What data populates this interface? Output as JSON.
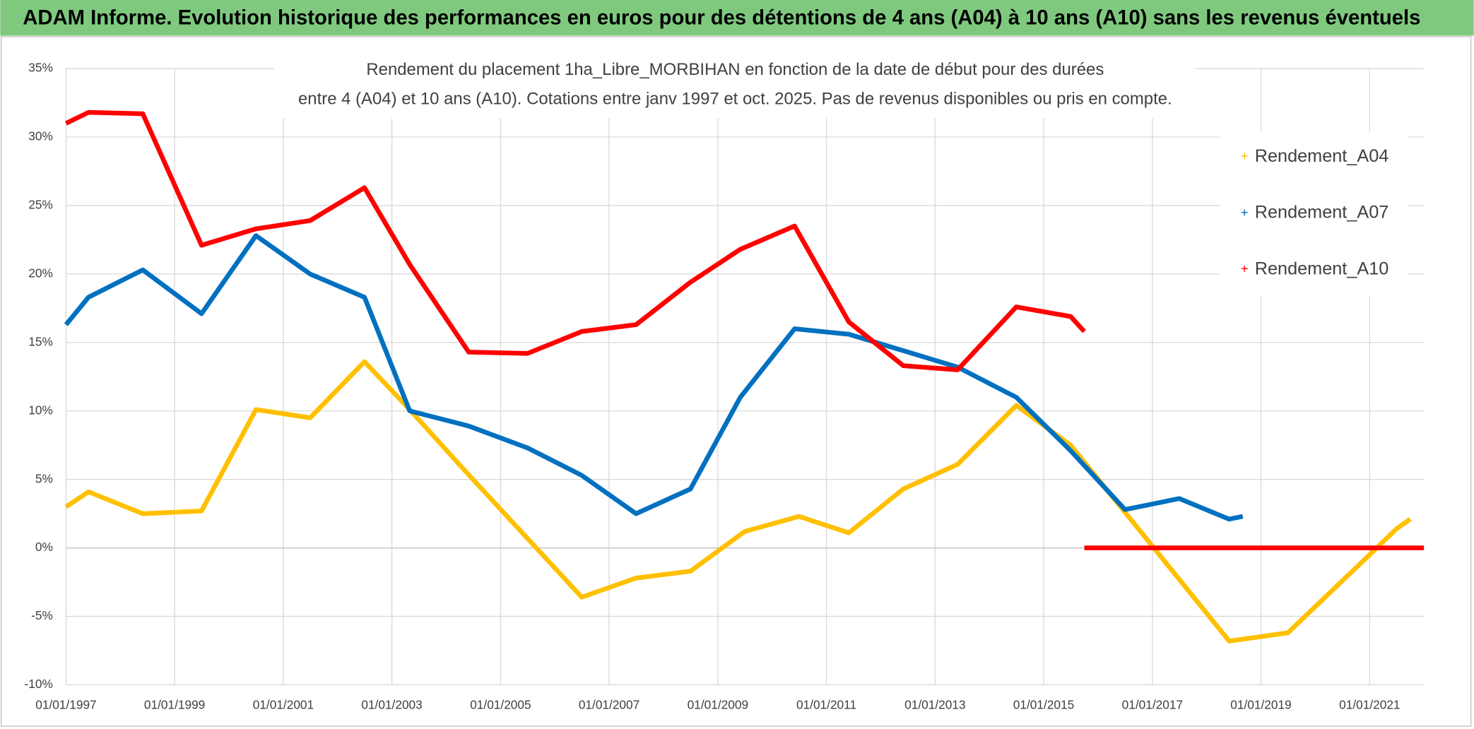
{
  "banner": "ADAM Informe. Evolution historique des performances en euros pour des détentions de 4 ans (A04) à 10 ans (A10) sans les revenus éventuels",
  "chart_data": {
    "type": "line",
    "title": [
      "Rendement du placement 1ha_Libre_MORBIHAN en fonction de la date de début pour des durées",
      "entre 4 (A04) et 10 ans (A10). Cotations entre janv 1997 et oct. 2025. Pas de revenus disponibles ou pris en compte."
    ],
    "xlim": [
      "1997-01-01",
      "2022-01-01"
    ],
    "xticks": [
      {
        "value": "1997-01-01",
        "label": "01/01/1997"
      },
      {
        "value": "1999-01-01",
        "label": "01/01/1999"
      },
      {
        "value": "2001-01-01",
        "label": "01/01/2001"
      },
      {
        "value": "2003-01-01",
        "label": "01/01/2003"
      },
      {
        "value": "2005-01-01",
        "label": "01/01/2005"
      },
      {
        "value": "2007-01-01",
        "label": "01/01/2007"
      },
      {
        "value": "2009-01-01",
        "label": "01/01/2009"
      },
      {
        "value": "2011-01-01",
        "label": "01/01/2011"
      },
      {
        "value": "2013-01-01",
        "label": "01/01/2013"
      },
      {
        "value": "2015-01-01",
        "label": "01/01/2015"
      },
      {
        "value": "2017-01-01",
        "label": "01/01/2017"
      },
      {
        "value": "2019-01-01",
        "label": "01/01/2019"
      },
      {
        "value": "2021-01-01",
        "label": "01/01/2021"
      }
    ],
    "ylim": [
      -10,
      35
    ],
    "yticks": [
      {
        "value": -10,
        "label": "-10%"
      },
      {
        "value": -5,
        "label": "-5%"
      },
      {
        "value": 0,
        "label": "0%"
      },
      {
        "value": 5,
        "label": "5%"
      },
      {
        "value": 10,
        "label": "10%"
      },
      {
        "value": 15,
        "label": "15%"
      },
      {
        "value": 20,
        "label": "20%"
      },
      {
        "value": 25,
        "label": "25%"
      },
      {
        "value": 30,
        "label": "30%"
      },
      {
        "value": 35,
        "label": "35%"
      }
    ],
    "grid": true,
    "legend": "right",
    "series": [
      {
        "name": "Rendement_A04",
        "color": "#ffc000",
        "x": [
          "1997-01-01",
          "1997-06-01",
          "1998-06-01",
          "1999-01-01",
          "1999-07-01",
          "2000-07-01",
          "2001-07-01",
          "2002-07-01",
          "2003-05-01",
          "2004-05-01",
          "2006-07-01",
          "2007-07-01",
          "2008-07-01",
          "2009-07-01",
          "2010-07-01",
          "2011-06-01",
          "2012-06-01",
          "2013-06-01",
          "2014-07-01",
          "2015-07-01",
          "2016-07-01",
          "2018-06-01",
          "2019-07-01",
          "2021-01-01",
          "2021-07-01",
          "2021-10-01"
        ],
        "values": [
          3.0,
          4.1,
          2.5,
          2.6,
          2.7,
          10.1,
          9.5,
          13.6,
          10.1,
          5.7,
          -3.6,
          -2.2,
          -1.7,
          1.2,
          2.3,
          1.1,
          4.3,
          6.1,
          10.4,
          7.5,
          2.6,
          -6.8,
          -6.2,
          -0.5,
          1.4,
          2.1
        ]
      },
      {
        "name": "Rendement_A07",
        "color": "#0070c0",
        "x": [
          "1997-01-01",
          "1997-06-01",
          "1998-06-01",
          "1999-07-01",
          "2000-07-01",
          "2001-07-01",
          "2002-07-01",
          "2003-05-01",
          "2004-06-01",
          "2005-07-01",
          "2006-07-01",
          "2007-07-01",
          "2008-07-01",
          "2009-06-01",
          "2010-06-01",
          "2011-06-01",
          "2012-06-01",
          "2013-06-01",
          "2014-07-01",
          "2015-07-01",
          "2016-07-01",
          "2017-07-01",
          "2018-06-01",
          "2018-09-01"
        ],
        "values": [
          16.3,
          18.3,
          20.3,
          17.1,
          22.8,
          20.0,
          18.3,
          10.0,
          8.9,
          7.3,
          5.3,
          2.5,
          4.3,
          11.0,
          16.0,
          15.6,
          14.4,
          13.2,
          11.0,
          7.1,
          2.8,
          3.6,
          2.1,
          2.3
        ]
      },
      {
        "name": "Rendement_A10",
        "color": "#ff0000",
        "x": [
          "1997-01-01",
          "1997-06-01",
          "1998-06-01",
          "1999-07-01",
          "2000-07-01",
          "2001-07-01",
          "2002-07-01",
          "2003-05-01",
          "2004-06-01",
          "2005-07-01",
          "2006-07-01",
          "2007-07-01",
          "2008-07-01",
          "2009-06-01",
          "2010-06-01",
          "2011-06-01",
          "2012-06-01",
          "2013-06-01",
          "2014-07-01",
          "2015-07-01",
          "2015-10-01",
          "2015-10-01",
          "2015-10-01",
          "2022-01-01"
        ],
        "values": [
          31.0,
          31.8,
          31.7,
          22.1,
          23.3,
          23.9,
          26.3,
          20.7,
          14.3,
          14.2,
          15.8,
          16.3,
          19.4,
          21.8,
          23.5,
          16.5,
          13.3,
          13.0,
          17.6,
          16.9,
          15.8,
          null,
          0,
          0
        ]
      }
    ]
  }
}
